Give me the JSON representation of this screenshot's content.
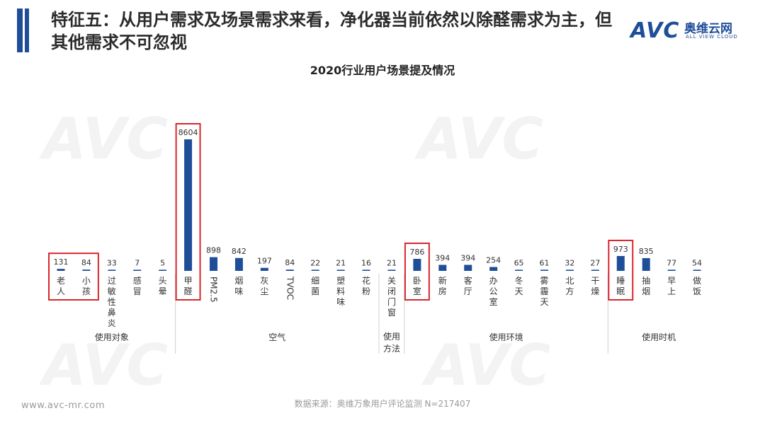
{
  "header": {
    "title": "特征五：从用户需求及场景需求来看，净化器当前依然以除醛需求为主，但其他需求不可忽视"
  },
  "logo": {
    "mark": "AVC",
    "cn": "奥维云网",
    "en": "ALL VIEW CLOUD"
  },
  "footer": {
    "url": "www.avc-mr.com",
    "source": "数据来源：奥维万象用户评论监测   N=217407"
  },
  "colors": {
    "bar": "#1f4e99",
    "highlight": "#d9262c",
    "accent": "#1f4e99"
  },
  "chart_data": {
    "type": "bar",
    "title": "2020行业用户场景提及情况",
    "categories": [
      "老人",
      "小孩",
      "过敏性鼻炎",
      "感冒",
      "头晕",
      "甲醛",
      "PM2.5",
      "烟味",
      "灰尘",
      "TVOC",
      "细菌",
      "塑料味",
      "花粉",
      "关闭门窗",
      "卧室",
      "新房",
      "客厅",
      "办公室",
      "冬天",
      "雾霾天",
      "北方",
      "干燥",
      "睡眠",
      "抽烟",
      "早上",
      "做饭"
    ],
    "values": [
      131,
      84,
      33,
      7,
      5,
      8604,
      898,
      842,
      197,
      84,
      22,
      21,
      16,
      21,
      786,
      394,
      394,
      254,
      65,
      61,
      32,
      27,
      973,
      835,
      77,
      54
    ],
    "groups": [
      {
        "name": "使用对象",
        "start": 0,
        "end": 4
      },
      {
        "name": "空气",
        "start": 5,
        "end": 12
      },
      {
        "name": "使用方法",
        "start": 13,
        "end": 13
      },
      {
        "name": "使用环境",
        "start": 14,
        "end": 21
      },
      {
        "name": "使用时机",
        "start": 22,
        "end": 25
      }
    ],
    "highlighted": [
      [
        0,
        1
      ],
      [
        5,
        5
      ],
      [
        14,
        14
      ],
      [
        22,
        22
      ]
    ],
    "ylim": [
      0,
      8604
    ],
    "grid": false,
    "xlabel": "",
    "ylabel": ""
  }
}
